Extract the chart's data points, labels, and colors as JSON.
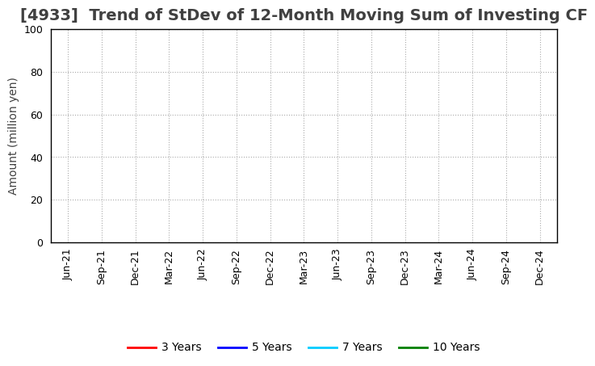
{
  "title": "[4933]  Trend of StDev of 12-Month Moving Sum of Investing CF",
  "ylabel": "Amount (million yen)",
  "ylim": [
    0,
    100
  ],
  "yticks": [
    0,
    20,
    40,
    60,
    80,
    100
  ],
  "x_labels": [
    "Jun-21",
    "Sep-21",
    "Dec-21",
    "Mar-22",
    "Jun-22",
    "Sep-22",
    "Dec-22",
    "Mar-23",
    "Jun-23",
    "Sep-23",
    "Dec-23",
    "Mar-24",
    "Jun-24",
    "Sep-24",
    "Dec-24"
  ],
  "legend_entries": [
    "3 Years",
    "5 Years",
    "7 Years",
    "10 Years"
  ],
  "legend_colors": [
    "#ff0000",
    "#0000ff",
    "#00ccff",
    "#008000"
  ],
  "background_color": "#ffffff",
  "grid_color": "#aaaaaa",
  "title_color": "#404040",
  "title_fontsize": 14,
  "axis_label_fontsize": 10,
  "tick_fontsize": 9,
  "legend_fontsize": 10,
  "spine_color": "#000000"
}
